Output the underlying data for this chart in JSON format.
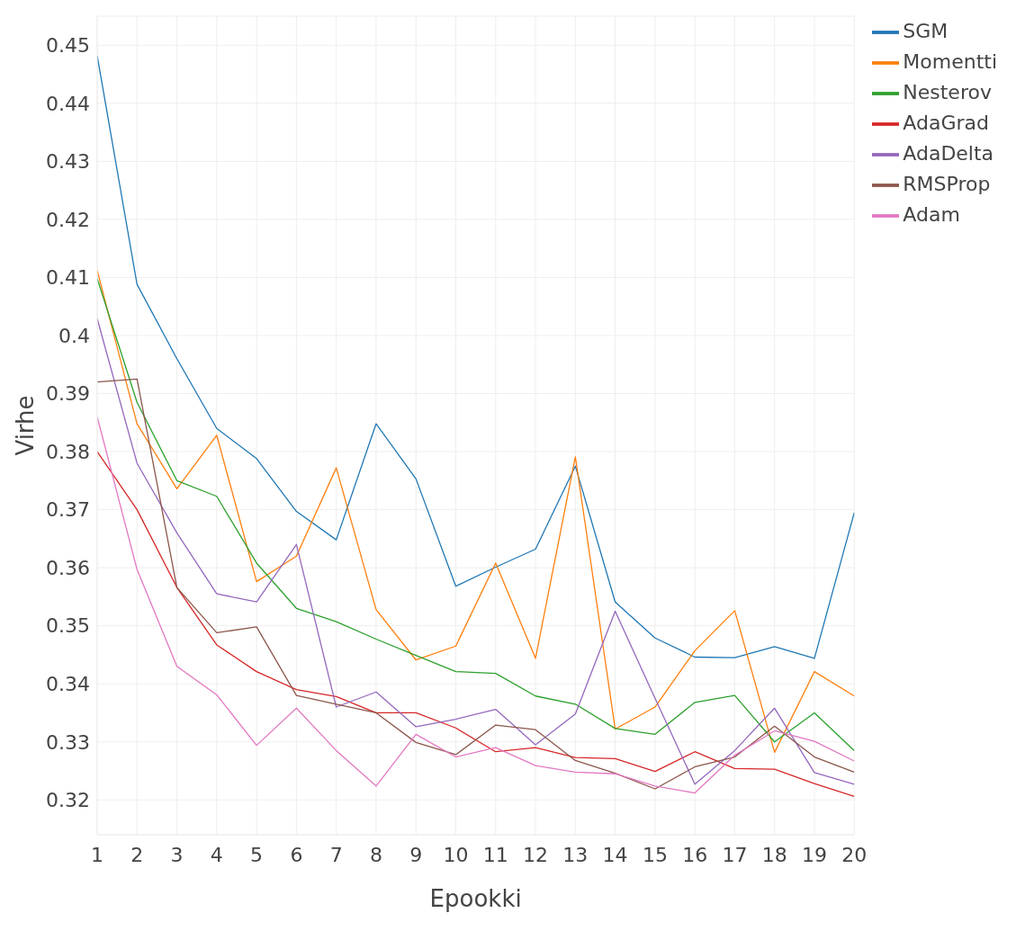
{
  "chart_data": {
    "type": "line",
    "xlabel": "Epookki",
    "ylabel": "Virhe",
    "x": [
      1,
      2,
      3,
      4,
      5,
      6,
      7,
      8,
      9,
      10,
      11,
      12,
      13,
      14,
      15,
      16,
      17,
      18,
      19,
      20
    ],
    "xlim": [
      1,
      20
    ],
    "xticks": [
      1,
      2,
      3,
      4,
      5,
      6,
      7,
      8,
      9,
      10,
      11,
      12,
      13,
      14,
      15,
      16,
      17,
      18,
      19,
      20
    ],
    "ylim": [
      0.314,
      0.455
    ],
    "yticks": [
      0.32,
      0.33,
      0.34,
      0.35,
      0.36,
      0.37,
      0.38,
      0.39,
      0.4,
      0.41,
      0.42,
      0.43,
      0.44,
      0.45
    ],
    "grid": true,
    "legend": "top right",
    "marker": "none",
    "line_style": "solid",
    "series": [
      {
        "name": "SGM",
        "color": "#1f77b4",
        "values": [
          0.4482,
          0.4088,
          0.396,
          0.384,
          0.3788,
          0.3697,
          0.3648,
          0.3848,
          0.3753,
          0.3568,
          0.3601,
          0.3632,
          0.3775,
          0.3541,
          0.3479,
          0.3446,
          0.3445,
          0.3464,
          0.3444,
          0.3695
        ]
      },
      {
        "name": "Momentti",
        "color": "#ff7f0e",
        "values": [
          0.4112,
          0.3848,
          0.3736,
          0.3828,
          0.3576,
          0.362,
          0.3772,
          0.3528,
          0.3441,
          0.3465,
          0.3608,
          0.3444,
          0.3791,
          0.3322,
          0.336,
          0.3457,
          0.3526,
          0.3282,
          0.3421,
          0.3379
        ]
      },
      {
        "name": "Nesterov",
        "color": "#2ca02c",
        "values": [
          0.4098,
          0.3885,
          0.375,
          0.3723,
          0.3608,
          0.353,
          0.3507,
          0.3477,
          0.3449,
          0.3421,
          0.3418,
          0.3379,
          0.3365,
          0.3323,
          0.3313,
          0.3368,
          0.338,
          0.33,
          0.335,
          0.3285
        ]
      },
      {
        "name": "AdaGrad",
        "color": "#d62728",
        "values": [
          0.38,
          0.37,
          0.3566,
          0.3467,
          0.3421,
          0.339,
          0.3378,
          0.335,
          0.335,
          0.3324,
          0.3283,
          0.329,
          0.3273,
          0.3271,
          0.3249,
          0.3283,
          0.3254,
          0.3253,
          0.3228,
          0.3206
        ]
      },
      {
        "name": "AdaDelta",
        "color": "#9467bd",
        "values": [
          0.4029,
          0.378,
          0.366,
          0.3555,
          0.3541,
          0.364,
          0.336,
          0.3386,
          0.3326,
          0.3339,
          0.3356,
          0.3295,
          0.3348,
          0.3525,
          0.3375,
          0.3227,
          0.3285,
          0.3358,
          0.3247,
          0.3227
        ]
      },
      {
        "name": "RMSProp",
        "color": "#8c564b",
        "values": [
          0.392,
          0.3925,
          0.3566,
          0.3488,
          0.3498,
          0.338,
          0.3365,
          0.335,
          0.3299,
          0.3278,
          0.3329,
          0.3321,
          0.3268,
          0.3246,
          0.3219,
          0.3257,
          0.3274,
          0.3327,
          0.3274,
          0.3248
        ]
      },
      {
        "name": "Adam",
        "color": "#e377c2",
        "values": [
          0.386,
          0.3597,
          0.343,
          0.3381,
          0.3294,
          0.3358,
          0.3285,
          0.3224,
          0.3313,
          0.3274,
          0.329,
          0.3259,
          0.3248,
          0.3245,
          0.3224,
          0.3212,
          0.3277,
          0.3319,
          0.3301,
          0.3267
        ]
      }
    ]
  }
}
